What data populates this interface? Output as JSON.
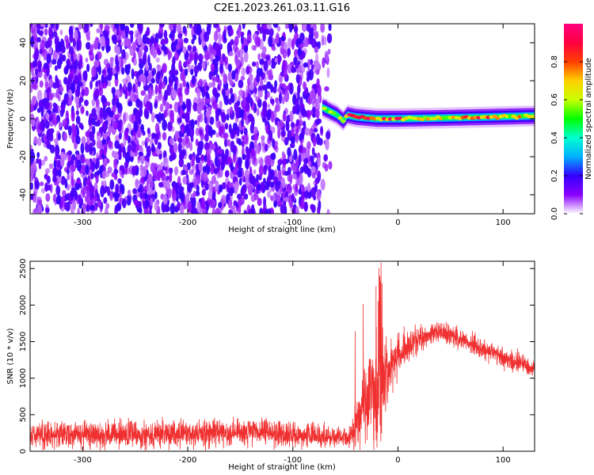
{
  "title": "C2E1.2023.261.03.11.G16",
  "chart_data": [
    {
      "type": "heatmap",
      "xlabel": "Height of straight line (km)",
      "ylabel": "Frequency (Hz)",
      "xlim": [
        -350,
        130
      ],
      "ylim": [
        -50,
        50
      ],
      "xticks": [
        -300,
        -200,
        -100,
        0,
        100
      ],
      "yticks": [
        -40,
        -20,
        0,
        20,
        40
      ],
      "colorbar": {
        "label": "Normalized spectral amplitude",
        "range": [
          0,
          1
        ],
        "ticks": [
          0.0,
          0.2,
          0.4,
          0.6,
          0.8
        ],
        "colormap": [
          "#ffffff",
          "#8a00ff",
          "#3300ff",
          "#00b0ff",
          "#00ffd0",
          "#00ff00",
          "#c8ff00",
          "#ffd000",
          "#ff4000",
          "#ff0040",
          "#ff0080"
        ]
      },
      "description": "Scattered low-amplitude noise for heights below about -70 km; a narrow band near 0 Hz from about -72 km to 130 km with amplitude increasing above -50 km",
      "band": {
        "x_start": -72,
        "x_end": 130,
        "center_hz": [
          {
            "x": -72,
            "y": 6
          },
          {
            "x": -65,
            "y": 4
          },
          {
            "x": -58,
            "y": 2
          },
          {
            "x": -52,
            "y": -1
          },
          {
            "x": -48,
            "y": 2
          },
          {
            "x": -40,
            "y": 1
          },
          {
            "x": -20,
            "y": 0
          },
          {
            "x": 0,
            "y": 0
          },
          {
            "x": 50,
            "y": 0.5
          },
          {
            "x": 90,
            "y": 1
          },
          {
            "x": 130,
            "y": 1.5
          }
        ]
      }
    },
    {
      "type": "line",
      "xlabel": "Height of straight line (km)",
      "ylabel": "SNR (10 * v/v)",
      "xlim": [
        -350,
        130
      ],
      "ylim": [
        0,
        2600
      ],
      "xticks": [
        -300,
        -200,
        -100,
        0,
        100
      ],
      "yticks": [
        0,
        500,
        1000,
        1500,
        2000,
        2500
      ],
      "color": "#f03030",
      "series": [
        {
          "x": [
            -350,
            -300,
            -250,
            -200,
            -150,
            -100,
            -80,
            -60,
            -45,
            -40,
            -35,
            -30,
            -25,
            -20,
            -15,
            -10,
            0,
            10,
            20,
            30,
            40,
            50,
            60,
            70,
            80,
            90,
            100,
            110,
            120,
            130
          ],
          "mean": [
            230,
            225,
            230,
            240,
            265,
            225,
            210,
            205,
            200,
            350,
            550,
            700,
            800,
            600,
            900,
            1100,
            1300,
            1430,
            1530,
            1600,
            1620,
            1600,
            1540,
            1470,
            1410,
            1350,
            1280,
            1230,
            1180,
            1130
          ],
          "noise": [
            130,
            130,
            130,
            130,
            130,
            120,
            110,
            100,
            100,
            200,
            300,
            400,
            450,
            450,
            500,
            300,
            200,
            150,
            120,
            110,
            100,
            100,
            100,
            100,
            100,
            100,
            100,
            100,
            100,
            100
          ]
        }
      ]
    }
  ]
}
